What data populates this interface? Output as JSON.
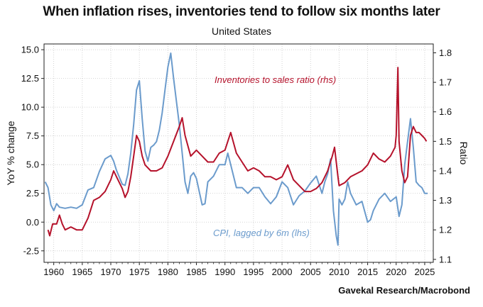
{
  "header": {
    "title": "When inflation rises, inventories tend to follow six months later",
    "subtitle": "United States"
  },
  "source": "Gavekal Research/Macrobond",
  "colors": {
    "cpi": "#6b9bcc",
    "inventories": "#b5122b",
    "grid": "#c8c8c8"
  },
  "chart_data": {
    "type": "line",
    "title": "When inflation rises, inventories tend to follow six months later",
    "subtitle": "United States",
    "xlim": [
      1958.3,
      2026.5
    ],
    "x_ticks": [
      1960,
      1965,
      1970,
      1975,
      1980,
      1985,
      1990,
      1995,
      2000,
      2005,
      2010,
      2015,
      2020,
      2025
    ],
    "x_tick_labels": [
      "1960",
      "1965",
      "1970",
      "1975",
      "1980",
      "1985",
      "1990",
      "1995",
      "2000",
      "2005",
      "2010",
      "2015",
      "2020",
      "2025"
    ],
    "y_left": {
      "label": "YoY % change",
      "lim": [
        -3.5,
        15.5
      ],
      "ticks": [
        -2.5,
        0,
        2.5,
        5,
        7.5,
        10,
        12.5,
        15
      ],
      "tick_labels": [
        "-2.5",
        "0.0",
        "2.5",
        "5.0",
        "7.5",
        "10.0",
        "12.5",
        "15.0"
      ]
    },
    "y_right": {
      "label": "Ratio",
      "lim": [
        1.09,
        1.83
      ],
      "ticks": [
        1.1,
        1.2,
        1.3,
        1.4,
        1.5,
        1.6,
        1.7,
        1.8
      ],
      "tick_labels": [
        "1.1",
        "1.2",
        "1.3",
        "1.4",
        "1.5",
        "1.6",
        "1.7",
        "1.8"
      ]
    },
    "grid": true,
    "series": [
      {
        "name": "CPI, lagged by 6m (lhs)",
        "axis": "left",
        "color": "#6b9bcc",
        "label_text": "CPI, lagged by 6m (lhs)",
        "points": [
          [
            1958.5,
            3.5
          ],
          [
            1959.0,
            3.0
          ],
          [
            1959.5,
            1.5
          ],
          [
            1960.0,
            1.0
          ],
          [
            1960.5,
            1.6
          ],
          [
            1961.0,
            1.3
          ],
          [
            1962.0,
            1.2
          ],
          [
            1963.0,
            1.3
          ],
          [
            1964.0,
            1.2
          ],
          [
            1965.0,
            1.5
          ],
          [
            1966.0,
            2.8
          ],
          [
            1967.0,
            3.0
          ],
          [
            1968.0,
            4.4
          ],
          [
            1969.0,
            5.5
          ],
          [
            1970.0,
            5.8
          ],
          [
            1970.5,
            5.3
          ],
          [
            1971.0,
            4.5
          ],
          [
            1972.0,
            3.3
          ],
          [
            1972.5,
            3.2
          ],
          [
            1973.0,
            4.2
          ],
          [
            1973.5,
            6.0
          ],
          [
            1974.0,
            8.5
          ],
          [
            1974.5,
            11.5
          ],
          [
            1975.0,
            12.3
          ],
          [
            1975.5,
            9.0
          ],
          [
            1976.0,
            6.2
          ],
          [
            1976.5,
            5.3
          ],
          [
            1977.0,
            6.5
          ],
          [
            1977.5,
            6.7
          ],
          [
            1978.0,
            7.0
          ],
          [
            1978.5,
            8.0
          ],
          [
            1979.0,
            9.5
          ],
          [
            1979.5,
            11.5
          ],
          [
            1980.0,
            13.5
          ],
          [
            1980.5,
            14.7
          ],
          [
            1981.0,
            12.5
          ],
          [
            1981.5,
            10.5
          ],
          [
            1982.0,
            8.5
          ],
          [
            1982.5,
            6.0
          ],
          [
            1983.0,
            3.5
          ],
          [
            1983.5,
            2.5
          ],
          [
            1984.0,
            4.0
          ],
          [
            1984.5,
            4.3
          ],
          [
            1985.0,
            3.8
          ],
          [
            1986.0,
            1.5
          ],
          [
            1986.5,
            1.6
          ],
          [
            1987.0,
            3.5
          ],
          [
            1988.0,
            4.0
          ],
          [
            1989.0,
            5.0
          ],
          [
            1990.0,
            5.0
          ],
          [
            1990.5,
            6.0
          ],
          [
            1991.0,
            5.0
          ],
          [
            1992.0,
            3.0
          ],
          [
            1993.0,
            3.0
          ],
          [
            1994.0,
            2.5
          ],
          [
            1995.0,
            3.0
          ],
          [
            1996.0,
            3.0
          ],
          [
            1997.0,
            2.2
          ],
          [
            1998.0,
            1.6
          ],
          [
            1999.0,
            2.2
          ],
          [
            2000.0,
            3.5
          ],
          [
            2001.0,
            3.0
          ],
          [
            2002.0,
            1.5
          ],
          [
            2003.0,
            2.3
          ],
          [
            2004.0,
            2.7
          ],
          [
            2005.0,
            3.4
          ],
          [
            2006.0,
            4.0
          ],
          [
            2007.0,
            2.5
          ],
          [
            2007.5,
            3.5
          ],
          [
            2008.0,
            4.2
          ],
          [
            2008.5,
            5.5
          ],
          [
            2009.0,
            1.0
          ],
          [
            2009.5,
            -1.2
          ],
          [
            2009.8,
            -2.0
          ],
          [
            2010.0,
            2.0
          ],
          [
            2010.5,
            1.5
          ],
          [
            2011.0,
            2.0
          ],
          [
            2011.5,
            3.5
          ],
          [
            2012.0,
            2.5
          ],
          [
            2013.0,
            1.5
          ],
          [
            2014.0,
            1.8
          ],
          [
            2015.0,
            0.0
          ],
          [
            2015.5,
            0.2
          ],
          [
            2016.0,
            1.0
          ],
          [
            2017.0,
            2.0
          ],
          [
            2018.0,
            2.5
          ],
          [
            2019.0,
            1.8
          ],
          [
            2020.0,
            2.2
          ],
          [
            2020.5,
            0.5
          ],
          [
            2021.0,
            1.5
          ],
          [
            2021.5,
            5.0
          ],
          [
            2022.0,
            7.0
          ],
          [
            2022.5,
            9.0
          ],
          [
            2023.0,
            6.5
          ],
          [
            2023.5,
            3.5
          ],
          [
            2024.0,
            3.2
          ],
          [
            2024.5,
            3.0
          ],
          [
            2025.0,
            2.5
          ],
          [
            2025.5,
            2.5
          ]
        ]
      },
      {
        "name": "Inventories to sales ratio (rhs)",
        "axis": "right",
        "color": "#b5122b",
        "label_text": "Inventories to sales ratio (rhs)",
        "points": [
          [
            1959.0,
            1.2
          ],
          [
            1959.3,
            1.18
          ],
          [
            1959.8,
            1.22
          ],
          [
            1960.5,
            1.22
          ],
          [
            1961.0,
            1.25
          ],
          [
            1961.5,
            1.22
          ],
          [
            1962.0,
            1.2
          ],
          [
            1963.0,
            1.21
          ],
          [
            1964.0,
            1.2
          ],
          [
            1965.0,
            1.2
          ],
          [
            1966.0,
            1.24
          ],
          [
            1967.0,
            1.3
          ],
          [
            1968.0,
            1.31
          ],
          [
            1969.0,
            1.33
          ],
          [
            1970.0,
            1.37
          ],
          [
            1970.5,
            1.4
          ],
          [
            1971.0,
            1.38
          ],
          [
            1972.0,
            1.34
          ],
          [
            1972.5,
            1.31
          ],
          [
            1973.0,
            1.33
          ],
          [
            1973.5,
            1.38
          ],
          [
            1974.0,
            1.45
          ],
          [
            1974.5,
            1.52
          ],
          [
            1975.0,
            1.5
          ],
          [
            1975.5,
            1.45
          ],
          [
            1976.0,
            1.42
          ],
          [
            1977.0,
            1.4
          ],
          [
            1978.0,
            1.4
          ],
          [
            1979.0,
            1.41
          ],
          [
            1980.0,
            1.45
          ],
          [
            1981.0,
            1.5
          ],
          [
            1982.0,
            1.55
          ],
          [
            1982.5,
            1.58
          ],
          [
            1983.0,
            1.52
          ],
          [
            1984.0,
            1.45
          ],
          [
            1985.0,
            1.47
          ],
          [
            1986.0,
            1.45
          ],
          [
            1987.0,
            1.43
          ],
          [
            1988.0,
            1.43
          ],
          [
            1989.0,
            1.46
          ],
          [
            1990.0,
            1.47
          ],
          [
            1990.5,
            1.5
          ],
          [
            1991.0,
            1.53
          ],
          [
            1992.0,
            1.46
          ],
          [
            1993.0,
            1.43
          ],
          [
            1994.0,
            1.4
          ],
          [
            1995.0,
            1.41
          ],
          [
            1996.0,
            1.4
          ],
          [
            1997.0,
            1.38
          ],
          [
            1998.0,
            1.38
          ],
          [
            1999.0,
            1.37
          ],
          [
            2000.0,
            1.38
          ],
          [
            2001.0,
            1.42
          ],
          [
            2002.0,
            1.37
          ],
          [
            2003.0,
            1.35
          ],
          [
            2004.0,
            1.33
          ],
          [
            2005.0,
            1.33
          ],
          [
            2006.0,
            1.34
          ],
          [
            2007.0,
            1.36
          ],
          [
            2008.0,
            1.4
          ],
          [
            2008.8,
            1.45
          ],
          [
            2009.2,
            1.48
          ],
          [
            2009.8,
            1.38
          ],
          [
            2010.0,
            1.35
          ],
          [
            2011.0,
            1.36
          ],
          [
            2012.0,
            1.38
          ],
          [
            2013.0,
            1.39
          ],
          [
            2014.0,
            1.4
          ],
          [
            2015.0,
            1.42
          ],
          [
            2016.0,
            1.46
          ],
          [
            2017.0,
            1.44
          ],
          [
            2018.0,
            1.43
          ],
          [
            2019.0,
            1.45
          ],
          [
            2019.8,
            1.48
          ],
          [
            2020.0,
            1.52
          ],
          [
            2020.3,
            1.75
          ],
          [
            2020.5,
            1.5
          ],
          [
            2021.0,
            1.4
          ],
          [
            2021.5,
            1.36
          ],
          [
            2022.0,
            1.38
          ],
          [
            2022.5,
            1.52
          ],
          [
            2023.0,
            1.55
          ],
          [
            2023.5,
            1.53
          ],
          [
            2024.0,
            1.53
          ],
          [
            2024.5,
            1.52
          ],
          [
            2025.0,
            1.51
          ],
          [
            2025.3,
            1.5
          ]
        ]
      }
    ]
  }
}
